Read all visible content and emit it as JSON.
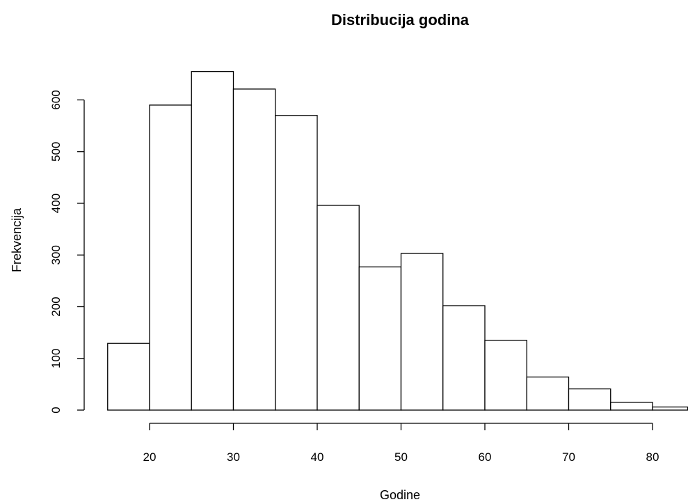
{
  "chart_data": {
    "type": "bar",
    "title": "Distribucija godina",
    "xlabel": "Godine",
    "ylabel": "Frekvencija",
    "bins": [
      {
        "from": 15,
        "to": 20,
        "count": 129
      },
      {
        "from": 20,
        "to": 25,
        "count": 590
      },
      {
        "from": 25,
        "to": 30,
        "count": 655
      },
      {
        "from": 30,
        "to": 35,
        "count": 621
      },
      {
        "from": 35,
        "to": 40,
        "count": 570
      },
      {
        "from": 40,
        "to": 45,
        "count": 396
      },
      {
        "from": 45,
        "to": 50,
        "count": 277
      },
      {
        "from": 50,
        "to": 55,
        "count": 303
      },
      {
        "from": 55,
        "to": 60,
        "count": 202
      },
      {
        "from": 60,
        "to": 65,
        "count": 135
      },
      {
        "from": 65,
        "to": 70,
        "count": 64
      },
      {
        "from": 70,
        "to": 75,
        "count": 41
      },
      {
        "from": 75,
        "to": 80,
        "count": 15
      },
      {
        "from": 80,
        "to": 85,
        "count": 6
      }
    ],
    "xticks": [
      20,
      30,
      40,
      50,
      60,
      70,
      80
    ],
    "yticks": [
      0,
      100,
      200,
      300,
      400,
      500,
      600
    ],
    "xlim": [
      15,
      85
    ],
    "ylim": [
      0,
      655
    ],
    "grid": false,
    "bar_fill": "#ffffff",
    "bar_stroke": "#000000"
  }
}
